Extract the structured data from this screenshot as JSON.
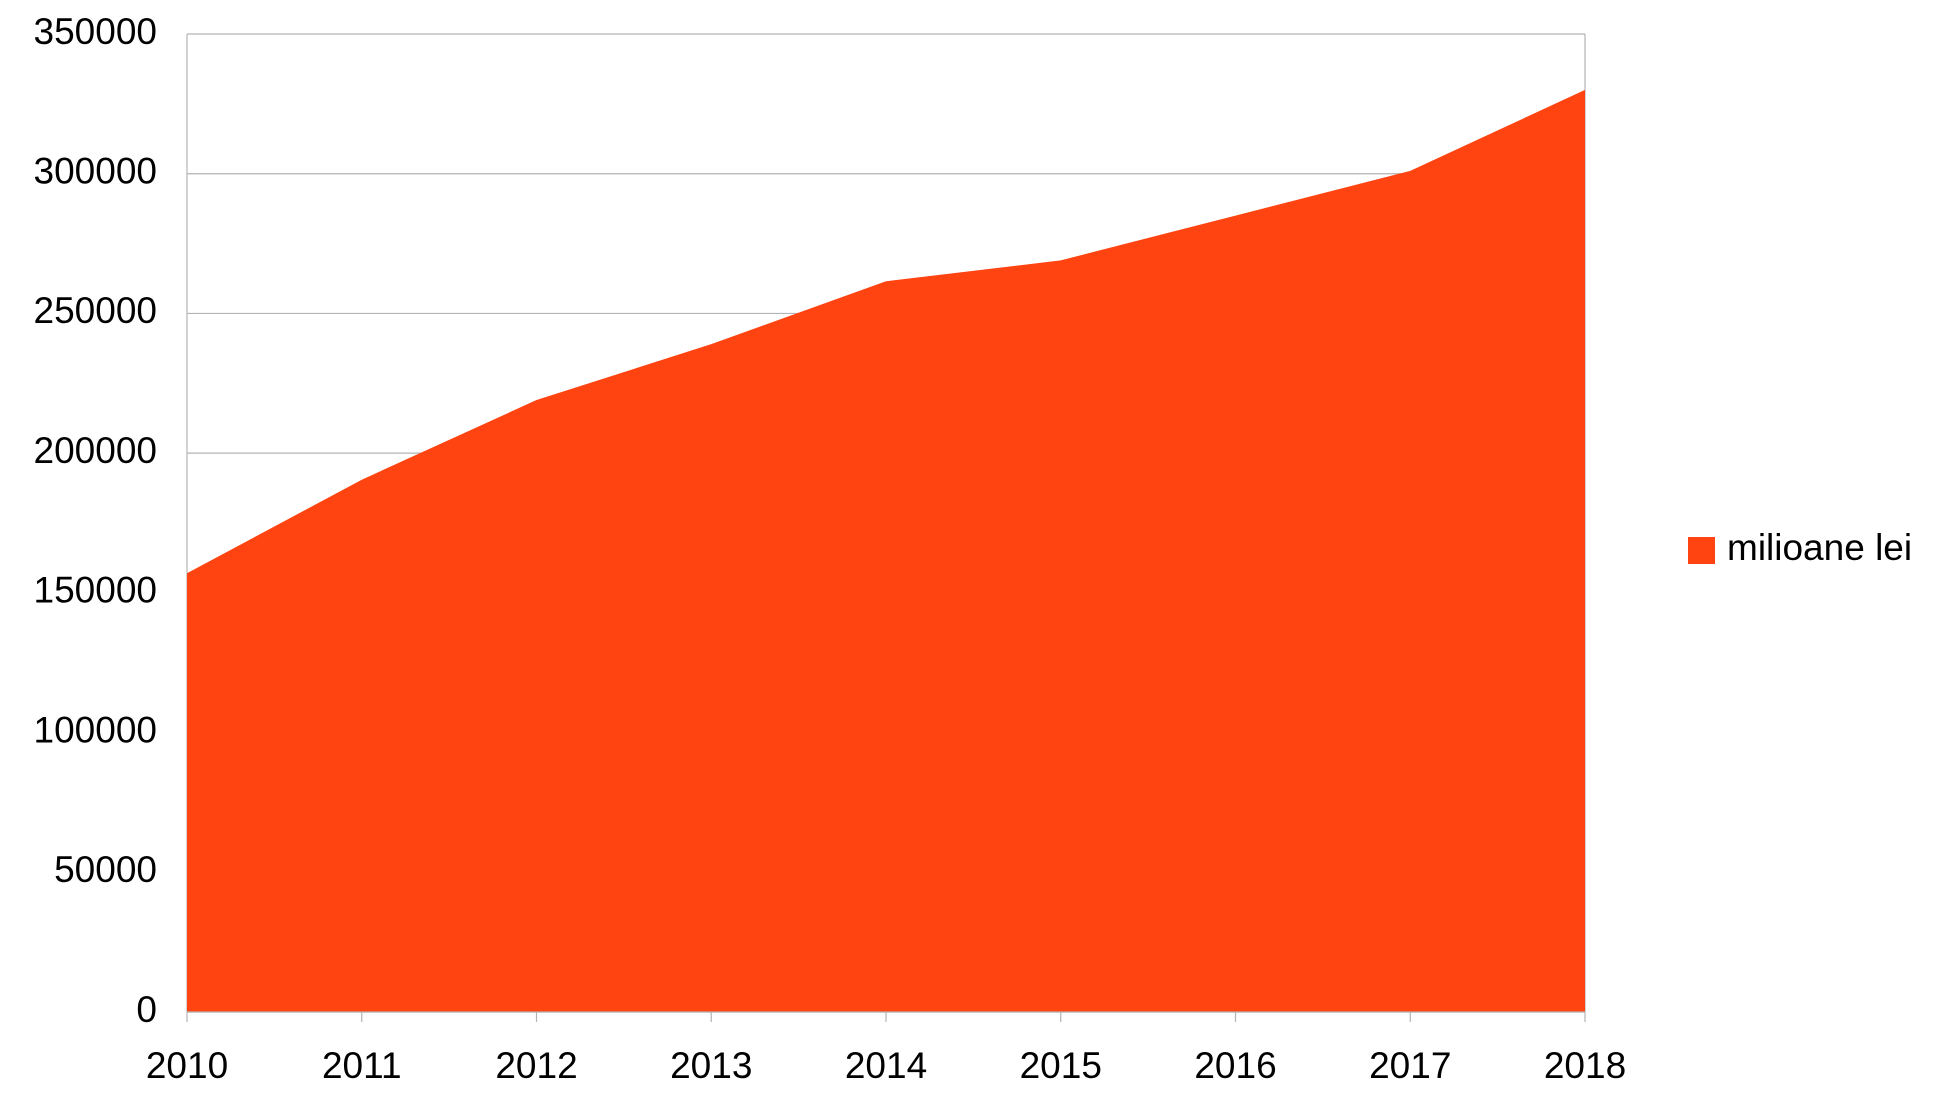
{
  "chart_data": {
    "type": "area",
    "categories": [
      "2010",
      "2011",
      "2012",
      "2013",
      "2014",
      "2015",
      "2016",
      "2017",
      "2018"
    ],
    "series": [
      {
        "name": "milioane lei",
        "color": "#ff4411",
        "values": [
          157000,
          190500,
          219000,
          239000,
          261500,
          269000,
          285000,
          301000,
          330000
        ]
      }
    ],
    "ylim": [
      0,
      350000
    ],
    "yticks": [
      0,
      50000,
      100000,
      150000,
      200000,
      250000,
      300000,
      350000
    ],
    "grid": true,
    "legend": "right"
  }
}
